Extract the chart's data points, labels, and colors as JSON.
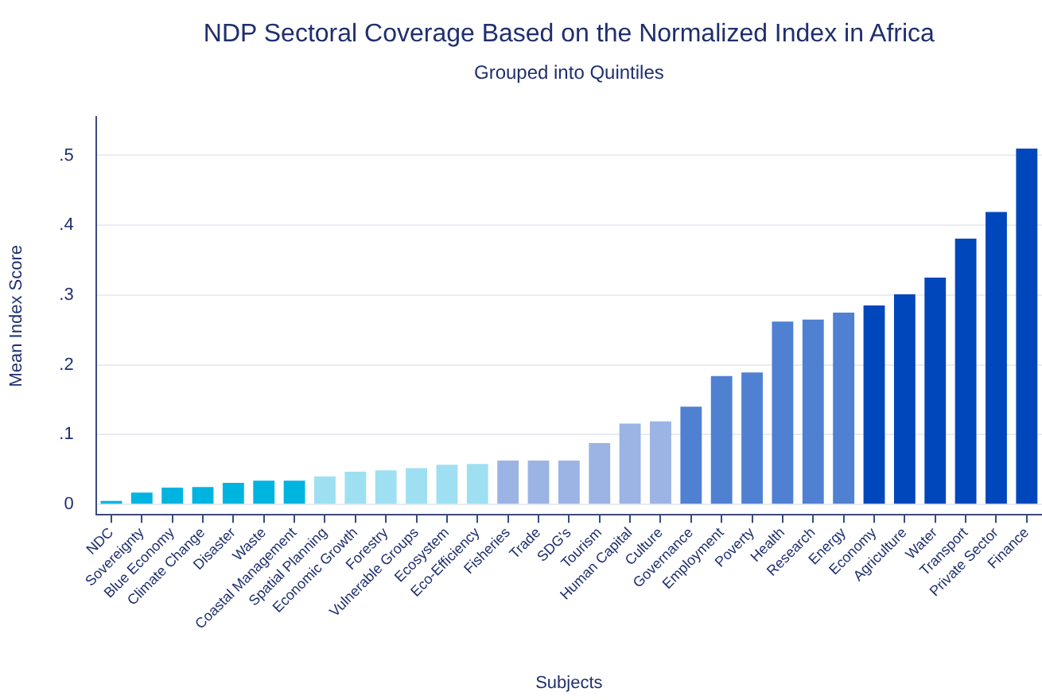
{
  "chart_data": {
    "type": "bar",
    "title": "NDP Sectoral Coverage Based on the Normalized Index in Africa",
    "subtitle": "Grouped into Quintiles",
    "xlabel": "Subjects",
    "ylabel": "Mean Index Score",
    "categories": [
      "NDC",
      "Sovereignty",
      "Blue Economy",
      "Climate Change",
      "Disaster",
      "Waste",
      "Coastal Management",
      "Spatial Planning",
      "Economic Growth",
      "Forestry",
      "Vulnerable Groups",
      "Ecosystem",
      "Eco-Efficiency",
      "Fisheries",
      "Trade",
      "SDG's",
      "Tourism",
      "Human Capital",
      "Culture",
      "Governance",
      "Employment",
      "Poverty",
      "Health",
      "Research",
      "Energy",
      "Economy",
      "Agriculture",
      "Water",
      "Transport",
      "Private Sector",
      "Finance"
    ],
    "values": [
      0.005,
      0.017,
      0.024,
      0.025,
      0.031,
      0.034,
      0.034,
      0.04,
      0.047,
      0.049,
      0.052,
      0.057,
      0.058,
      0.063,
      0.063,
      0.063,
      0.088,
      0.116,
      0.119,
      0.14,
      0.184,
      0.189,
      0.262,
      0.265,
      0.275,
      0.285,
      0.301,
      0.325,
      0.381,
      0.419,
      0.51
    ],
    "colors": [
      "#00b4e0",
      "#00b4e0",
      "#00b4e0",
      "#00b4e0",
      "#00b4e0",
      "#00b4e0",
      "#00b4e0",
      "#9ee0f2",
      "#9ee0f2",
      "#9ee0f2",
      "#9ee0f2",
      "#9ee0f2",
      "#9ee0f2",
      "#9bb4e4",
      "#9bb4e4",
      "#9bb4e4",
      "#9bb4e4",
      "#9bb4e4",
      "#9bb4e4",
      "#4f80d2",
      "#4f80d2",
      "#4f80d2",
      "#4f80d2",
      "#4f80d2",
      "#4f80d2",
      "#0047bb",
      "#0047bb",
      "#0047bb",
      "#0047bb",
      "#0047bb",
      "#0047bb"
    ],
    "ylim": [
      -0.015,
      0.555
    ],
    "yticks": [
      0,
      {
        "value": 0.1,
        "label": ".1"
      },
      {
        "value": 0.2,
        "label": ".2"
      },
      {
        "value": 0.3,
        "label": ".3"
      },
      {
        "value": 0.4,
        "label": ".4"
      },
      {
        "value": 0.5,
        "label": ".5"
      }
    ],
    "grid": "y"
  }
}
